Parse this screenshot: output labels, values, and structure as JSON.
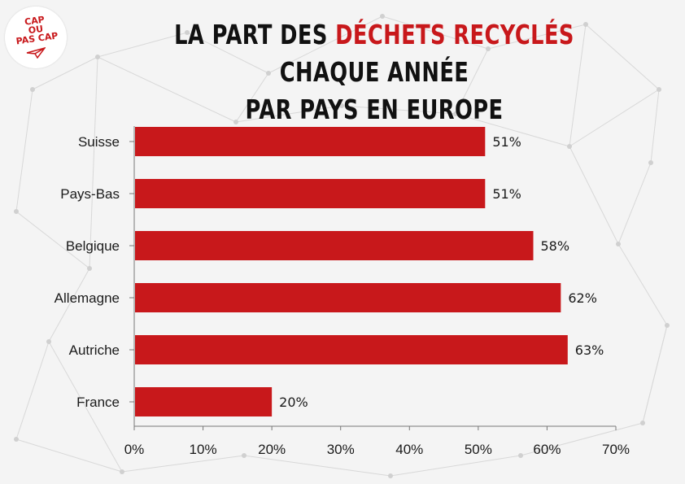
{
  "logo": {
    "line1": "CAP",
    "line2": "OU",
    "line3": "PAS CAP"
  },
  "title": {
    "part1": "LA PART DES ",
    "highlight": "DÉCHETS RECYCLÉS",
    "part2": " CHAQUE ANNÉE",
    "line2": "PAR PAYS EN EUROPE"
  },
  "colors": {
    "bar": "#c8181b",
    "accent": "#c8181b",
    "text": "#111111"
  },
  "chart_data": {
    "type": "bar",
    "orientation": "horizontal",
    "categories": [
      "Suisse",
      "Pays-Bas",
      "Belgique",
      "Allemagne",
      "Autriche",
      "France"
    ],
    "values": [
      51,
      51,
      58,
      62,
      63,
      20
    ],
    "value_labels": [
      "51%",
      "51%",
      "58%",
      "62%",
      "63%",
      "20%"
    ],
    "xlim": [
      0,
      70
    ],
    "x_ticks": [
      "0%",
      "10%",
      "20%",
      "30%",
      "40%",
      "50%",
      "60%",
      "70%"
    ],
    "grid": false
  }
}
